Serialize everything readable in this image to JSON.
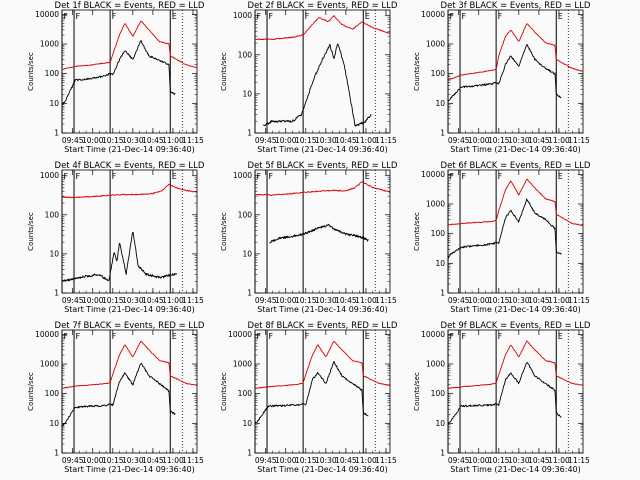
{
  "title_suffix": "BLACK = Events, RED = LLD",
  "xlabel": "Start Time (21-Dec-14 09:36:40)",
  "ylabel": "Counts/sec",
  "x_ticks": [
    "09:45",
    "10:00",
    "10:15",
    "10:30",
    "10:45",
    "11:00",
    "11:15"
  ],
  "y_ticks_4": [
    "1",
    "10",
    "100",
    "1000",
    "10000"
  ],
  "y_ticks_3": [
    "1",
    "10",
    "100",
    "1000"
  ],
  "colors": {
    "events": "#000000",
    "lld": "#dd0000"
  },
  "chart_data": [
    {
      "type": "line",
      "title": "Det 1f",
      "ylog": true,
      "ylim": [
        1,
        14000
      ],
      "xlim": [
        "09:37",
        "11:18"
      ],
      "flags": [
        {
          "t": "09:37",
          "label": "F"
        },
        {
          "t": "09:46",
          "label": "F"
        },
        {
          "t": "10:13",
          "label": "F"
        },
        {
          "t": "10:58",
          "label": "E"
        }
      ],
      "dotted": [
        "11:07"
      ],
      "series": [
        {
          "name": "BLACK",
          "color": "#000000",
          "t": [
            "09:37",
            "09:39",
            "09:47",
            "10:00",
            "10:10",
            "10:13",
            "10:15",
            "10:20",
            "10:24",
            "10:30",
            "10:36",
            "10:42",
            "10:50",
            "10:57",
            "10:58",
            "11:02"
          ],
          "values": [
            9,
            11,
            60,
            70,
            85,
            100,
            90,
            300,
            600,
            300,
            1300,
            400,
            280,
            200,
            25,
            20
          ]
        },
        {
          "name": "RED",
          "color": "#dd0000",
          "t": [
            "09:37",
            "09:47",
            "10:00",
            "10:10",
            "10:13",
            "10:15",
            "10:20",
            "10:24",
            "10:30",
            "10:36",
            "10:42",
            "10:50",
            "10:57",
            "10:58",
            "11:10",
            "11:18"
          ],
          "values": [
            140,
            175,
            200,
            230,
            240,
            450,
            2000,
            5000,
            1800,
            6000,
            3000,
            1200,
            1000,
            400,
            200,
            160
          ]
        }
      ]
    },
    {
      "type": "line",
      "title": "Det 2f",
      "ylog": true,
      "ylim": [
        1,
        1400
      ],
      "xlim": [
        "09:37",
        "11:18"
      ],
      "flags": [
        {
          "t": "09:37",
          "label": "F"
        },
        {
          "t": "09:46",
          "label": "F"
        },
        {
          "t": "10:13",
          "label": "F"
        },
        {
          "t": "10:58",
          "label": "E"
        }
      ],
      "dotted": [
        "11:07"
      ],
      "series": [
        {
          "name": "BLACK",
          "color": "#000000",
          "t": [
            "09:43",
            "09:50",
            "10:05",
            "10:12",
            "10:20",
            "10:26",
            "10:33",
            "10:36",
            "10:39",
            "10:44",
            "10:52",
            "11:00",
            "11:04"
          ],
          "values": [
            1.5,
            2,
            2,
            3,
            20,
            60,
            180,
            80,
            200,
            50,
            1.5,
            2,
            3
          ]
        },
        {
          "name": "RED",
          "color": "#dd0000",
          "t": [
            "09:37",
            "09:50",
            "10:05",
            "10:13",
            "10:20",
            "10:25",
            "10:32",
            "10:36",
            "10:42",
            "10:50",
            "10:57",
            "11:05",
            "11:18"
          ],
          "values": [
            250,
            250,
            280,
            320,
            600,
            900,
            700,
            1000,
            600,
            450,
            700,
            500,
            350
          ]
        }
      ]
    },
    {
      "type": "line",
      "title": "Det 3f",
      "ylog": true,
      "ylim": [
        1,
        14000
      ],
      "xlim": [
        "09:37",
        "11:18"
      ],
      "flags": [
        {
          "t": "09:37",
          "label": "F"
        },
        {
          "t": "09:46",
          "label": "F"
        },
        {
          "t": "10:13",
          "label": "F"
        },
        {
          "t": "10:58",
          "label": "E"
        }
      ],
      "dotted": [
        "11:07"
      ],
      "series": [
        {
          "name": "BLACK",
          "color": "#000000",
          "t": [
            "09:37",
            "09:39",
            "09:47",
            "10:00",
            "10:10",
            "10:13",
            "10:15",
            "10:20",
            "10:24",
            "10:30",
            "10:36",
            "10:42",
            "10:50",
            "10:57",
            "10:58",
            "11:02"
          ],
          "values": [
            12,
            15,
            35,
            40,
            45,
            50,
            45,
            200,
            400,
            180,
            1000,
            300,
            150,
            100,
            20,
            15
          ]
        },
        {
          "name": "RED",
          "color": "#dd0000",
          "t": [
            "09:37",
            "09:47",
            "10:00",
            "10:10",
            "10:13",
            "10:15",
            "10:20",
            "10:24",
            "10:30",
            "10:36",
            "10:42",
            "10:50",
            "10:57",
            "10:58",
            "11:10",
            "11:18"
          ],
          "values": [
            60,
            90,
            110,
            130,
            140,
            400,
            1800,
            3000,
            1200,
            5000,
            2500,
            1100,
            900,
            300,
            150,
            120
          ]
        }
      ]
    },
    {
      "type": "line",
      "title": "Det 4f",
      "ylog": true,
      "ylim": [
        1,
        1400
      ],
      "xlim": [
        "09:37",
        "11:18"
      ],
      "flags": [
        {
          "t": "09:37",
          "label": "F"
        },
        {
          "t": "09:46",
          "label": "F"
        },
        {
          "t": "10:13",
          "label": "F"
        },
        {
          "t": "10:58",
          "label": "E"
        }
      ],
      "dotted": [
        "11:07"
      ],
      "series": [
        {
          "name": "BLACK",
          "color": "#000000",
          "t": [
            "09:37",
            "09:50",
            "10:05",
            "10:12",
            "10:16",
            "10:18",
            "10:20",
            "10:25",
            "10:30",
            "10:34",
            "10:40",
            "10:50",
            "11:00",
            "11:03"
          ],
          "values": [
            2,
            2.5,
            3,
            2,
            12,
            6,
            20,
            3,
            40,
            5,
            3,
            2.5,
            3,
            3
          ]
        },
        {
          "name": "RED",
          "color": "#dd0000",
          "t": [
            "09:37",
            "09:50",
            "10:05",
            "10:15",
            "10:25",
            "10:35",
            "10:45",
            "10:52",
            "10:57",
            "11:05",
            "11:18"
          ],
          "values": [
            280,
            280,
            300,
            320,
            330,
            330,
            350,
            420,
            600,
            450,
            380
          ]
        }
      ]
    },
    {
      "type": "line",
      "title": "Det 5f",
      "ylog": true,
      "ylim": [
        1,
        1400
      ],
      "xlim": [
        "09:37",
        "11:18"
      ],
      "flags": [
        {
          "t": "09:37",
          "label": "F"
        },
        {
          "t": "09:46",
          "label": "F"
        },
        {
          "t": "10:13",
          "label": "F"
        },
        {
          "t": "10:58",
          "label": "E"
        }
      ],
      "dotted": [
        "11:07"
      ],
      "series": [
        {
          "name": "BLACK",
          "color": "#000000",
          "t": [
            "09:48",
            "09:55",
            "10:05",
            "10:13",
            "10:20",
            "10:27",
            "10:32",
            "10:38",
            "10:45",
            "10:55",
            "11:02"
          ],
          "values": [
            20,
            25,
            28,
            32,
            40,
            48,
            55,
            40,
            32,
            28,
            22
          ]
        },
        {
          "name": "RED",
          "color": "#dd0000",
          "t": [
            "09:37",
            "09:50",
            "10:05",
            "10:15",
            "10:25",
            "10:35",
            "10:45",
            "10:52",
            "10:57",
            "11:05",
            "11:18"
          ],
          "values": [
            330,
            320,
            350,
            380,
            400,
            420,
            410,
            500,
            700,
            500,
            380
          ]
        }
      ]
    },
    {
      "type": "line",
      "title": "Det 6f",
      "ylog": true,
      "ylim": [
        1,
        14000
      ],
      "xlim": [
        "09:37",
        "11:18"
      ],
      "flags": [
        {
          "t": "09:37",
          "label": "F"
        },
        {
          "t": "09:46",
          "label": "F"
        },
        {
          "t": "10:13",
          "label": "F"
        },
        {
          "t": "10:58",
          "label": "E"
        }
      ],
      "dotted": [
        "11:07"
      ],
      "series": [
        {
          "name": "BLACK",
          "color": "#000000",
          "t": [
            "09:37",
            "09:39",
            "09:47",
            "10:00",
            "10:10",
            "10:13",
            "10:15",
            "10:20",
            "10:24",
            "10:30",
            "10:36",
            "10:42",
            "10:50",
            "10:57",
            "10:58",
            "11:02"
          ],
          "values": [
            15,
            20,
            35,
            40,
            45,
            50,
            48,
            350,
            600,
            250,
            1500,
            500,
            300,
            150,
            25,
            20
          ]
        },
        {
          "name": "RED",
          "color": "#dd0000",
          "t": [
            "09:37",
            "09:47",
            "10:00",
            "10:10",
            "10:13",
            "10:15",
            "10:20",
            "10:24",
            "10:30",
            "10:36",
            "10:42",
            "10:50",
            "10:57",
            "10:58",
            "11:10",
            "11:18"
          ],
          "values": [
            200,
            220,
            240,
            260,
            280,
            600,
            3000,
            6000,
            2000,
            7000,
            3500,
            1500,
            1200,
            450,
            220,
            190
          ]
        }
      ]
    },
    {
      "type": "line",
      "title": "Det 7f",
      "ylog": true,
      "ylim": [
        1,
        14000
      ],
      "xlim": [
        "09:37",
        "11:18"
      ],
      "flags": [
        {
          "t": "09:37",
          "label": "F"
        },
        {
          "t": "09:46",
          "label": "F"
        },
        {
          "t": "10:13",
          "label": "F"
        },
        {
          "t": "10:58",
          "label": "E"
        }
      ],
      "dotted": [
        "11:07"
      ],
      "series": [
        {
          "name": "BLACK",
          "color": "#000000",
          "t": [
            "09:37",
            "09:39",
            "09:47",
            "10:00",
            "10:10",
            "10:13",
            "10:15",
            "10:20",
            "10:24",
            "10:30",
            "10:36",
            "10:42",
            "10:50",
            "10:57",
            "10:58",
            "11:02"
          ],
          "values": [
            8,
            10,
            35,
            38,
            40,
            45,
            42,
            250,
            500,
            200,
            1100,
            400,
            220,
            120,
            25,
            20
          ]
        },
        {
          "name": "RED",
          "color": "#dd0000",
          "t": [
            "09:37",
            "09:47",
            "10:00",
            "10:10",
            "10:13",
            "10:15",
            "10:20",
            "10:24",
            "10:30",
            "10:36",
            "10:42",
            "10:50",
            "10:57",
            "10:58",
            "11:10",
            "11:18"
          ],
          "values": [
            150,
            180,
            200,
            220,
            230,
            450,
            2000,
            4500,
            1700,
            6000,
            3000,
            1300,
            1100,
            400,
            220,
            190
          ]
        }
      ]
    },
    {
      "type": "line",
      "title": "Det 8f",
      "ylog": true,
      "ylim": [
        1,
        14000
      ],
      "xlim": [
        "09:37",
        "11:18"
      ],
      "flags": [
        {
          "t": "09:37",
          "label": "F"
        },
        {
          "t": "09:46",
          "label": "F"
        },
        {
          "t": "10:13",
          "label": "F"
        },
        {
          "t": "10:58",
          "label": "E"
        }
      ],
      "dotted": [
        "11:07"
      ],
      "series": [
        {
          "name": "BLACK",
          "color": "#000000",
          "t": [
            "09:37",
            "09:39",
            "09:47",
            "10:00",
            "10:10",
            "10:13",
            "10:15",
            "10:20",
            "10:24",
            "10:30",
            "10:36",
            "10:42",
            "10:50",
            "10:57",
            "10:58",
            "11:02"
          ],
          "values": [
            10,
            12,
            38,
            40,
            42,
            45,
            42,
            300,
            500,
            220,
            1200,
            400,
            220,
            130,
            22,
            18
          ]
        },
        {
          "name": "RED",
          "color": "#dd0000",
          "t": [
            "09:37",
            "09:47",
            "10:00",
            "10:10",
            "10:13",
            "10:15",
            "10:20",
            "10:24",
            "10:30",
            "10:36",
            "10:42",
            "10:50",
            "10:57",
            "10:58",
            "11:10",
            "11:18"
          ],
          "values": [
            150,
            170,
            190,
            210,
            230,
            450,
            2000,
            4500,
            1700,
            6000,
            3000,
            1300,
            1100,
            400,
            220,
            190
          ]
        }
      ]
    },
    {
      "type": "line",
      "title": "Det 9f",
      "ylog": true,
      "ylim": [
        1,
        14000
      ],
      "xlim": [
        "09:37",
        "11:18"
      ],
      "flags": [
        {
          "t": "09:37",
          "label": "F"
        },
        {
          "t": "09:46",
          "label": "F"
        },
        {
          "t": "10:13",
          "label": "F"
        },
        {
          "t": "10:58",
          "label": "E"
        }
      ],
      "dotted": [
        "11:07"
      ],
      "series": [
        {
          "name": "BLACK",
          "color": "#000000",
          "t": [
            "09:37",
            "09:39",
            "09:47",
            "10:00",
            "10:10",
            "10:13",
            "10:15",
            "10:20",
            "10:24",
            "10:30",
            "10:36",
            "10:42",
            "10:50",
            "10:57",
            "10:58",
            "11:02"
          ],
          "values": [
            9,
            12,
            38,
            40,
            42,
            45,
            42,
            300,
            500,
            220,
            1200,
            400,
            220,
            130,
            22,
            16
          ]
        },
        {
          "name": "RED",
          "color": "#dd0000",
          "t": [
            "09:37",
            "09:47",
            "10:00",
            "10:10",
            "10:13",
            "10:15",
            "10:20",
            "10:24",
            "10:30",
            "10:36",
            "10:42",
            "10:50",
            "10:57",
            "10:58",
            "11:10",
            "11:18"
          ],
          "values": [
            150,
            170,
            190,
            210,
            230,
            450,
            2000,
            4500,
            1700,
            6000,
            3000,
            1300,
            1100,
            400,
            220,
            190
          ]
        }
      ]
    }
  ]
}
